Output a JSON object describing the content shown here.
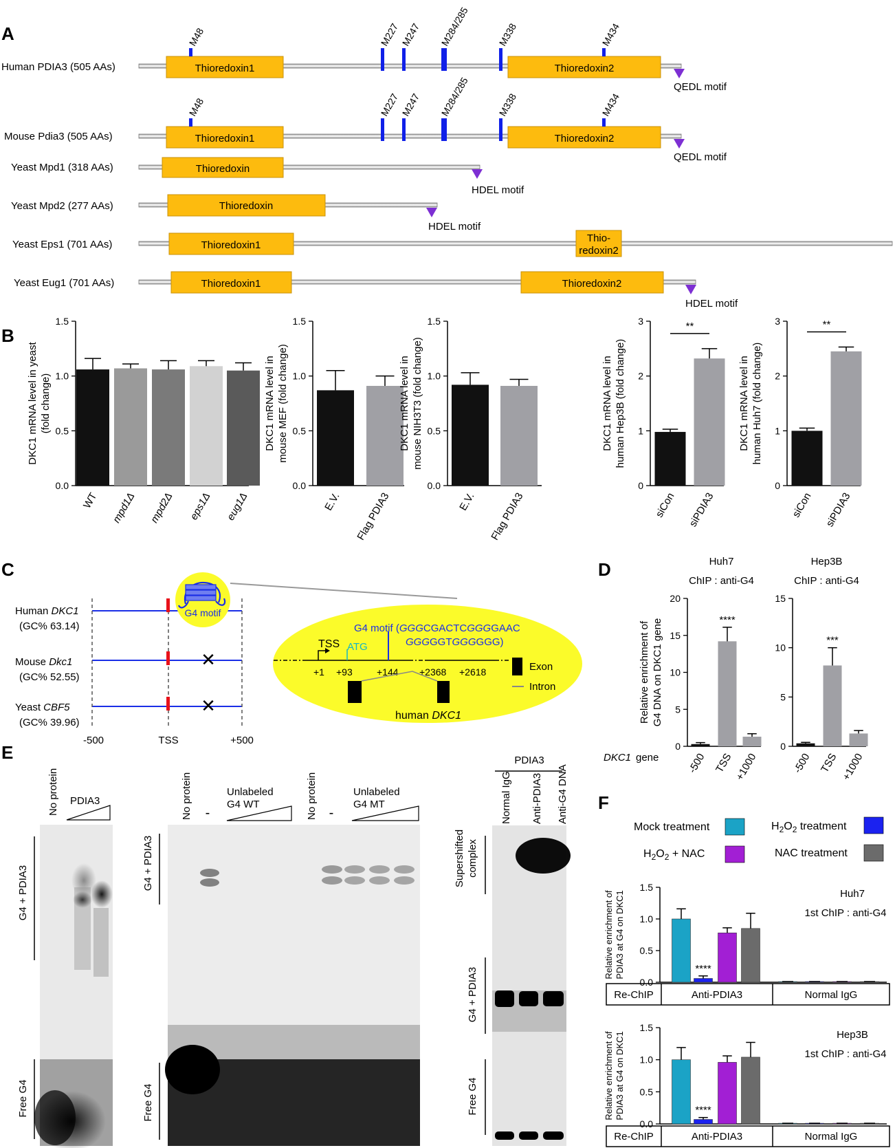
{
  "panel_letters": {
    "a": "A",
    "b": "B",
    "c": "C",
    "d": "D",
    "e": "E",
    "f": "F"
  },
  "panelA": {
    "proteins": [
      {
        "label": "Human PDIA3 (505 AAs)",
        "domains": [
          "Thioredoxin1",
          "Thioredoxin2"
        ],
        "motif": "QEDL motif",
        "sites": [
          "M48",
          "M227",
          "M247",
          "M284/285",
          "M338",
          "M434"
        ]
      },
      {
        "label": "Mouse Pdia3 (505 AAs)",
        "domains": [
          "Thioredoxin1",
          "Thioredoxin2"
        ],
        "motif": "QEDL motif",
        "sites": [
          "M48",
          "M227",
          "M247",
          "M284/285",
          "M338",
          "M434"
        ]
      },
      {
        "label": "Yeast Mpd1 (318 AAs)",
        "domains": [
          "Thioredoxin"
        ],
        "motif": "HDEL motif"
      },
      {
        "label": "Yeast Mpd2 (277 AAs)",
        "domains": [
          "Thioredoxin"
        ],
        "motif": "HDEL motif"
      },
      {
        "label": "Yeast Eps1 (701 AAs)",
        "domains": [
          "Thioredoxin1",
          "Thio-",
          "redoxin2"
        ]
      },
      {
        "label": "Yeast Eug1 (701 AAs)",
        "domains": [
          "Thioredoxin1",
          "Thioredoxin2"
        ],
        "motif": "HDEL motif"
      }
    ]
  },
  "panelC": {
    "rows": [
      {
        "name": "Human ",
        "gene": "DKC1",
        "gc": "(GC% 63.14)"
      },
      {
        "name": "Mouse ",
        "gene": "Dkc1",
        "gc": "(GC% 52.55)"
      },
      {
        "name": "Yeast ",
        "gene": "CBF5",
        "gc": "(GC% 39.96)"
      }
    ],
    "axis": [
      "-500",
      "TSS",
      "+500"
    ],
    "g4_label": "G4 motif",
    "inset": {
      "motif_prefix": "G4 motif (",
      "motif_seq1": "GGG",
      "motif_seq2": "CGACTC",
      "motif_seq3": "GGG",
      "motif_seq4": "GAAC",
      "motif_seq5": "GGG",
      "motif_seq6": "GGT",
      "motif_seq7": "GGG",
      "motif_seq8": "GGG)",
      "tss": "TSS",
      "atg": "ATG",
      "positions": [
        "+1",
        "+93",
        "+144",
        "+2368",
        "+2618"
      ],
      "exon": "Exon",
      "intron": "Intron",
      "gene_prefix": "human ",
      "gene": "DKC1"
    }
  },
  "panelE": {
    "gel1": {
      "lanes": [
        "No protein",
        "PDIA3"
      ],
      "labels": [
        "G4 + PDIA3",
        "Free G4"
      ]
    },
    "gel2": {
      "lanes": [
        "No protein",
        "-",
        "Unlabeled",
        "G4 WT",
        "No protein",
        "-",
        "Unlabeled",
        "G4 MT"
      ],
      "labels": [
        "G4 + PDIA3",
        "Free G4"
      ]
    },
    "gel3": {
      "header": "PDIA3",
      "lanes": [
        "Normal IgG",
        "Anti-PDIA3",
        "Anti-G4 DNA"
      ],
      "labels": [
        "Supershifted",
        "complex",
        "G4 + PDIA3",
        "Free G4"
      ]
    }
  },
  "panelF": {
    "legend": [
      {
        "label": "Mock treatment",
        "color": "#1ba3c6"
      },
      {
        "label": "H2O2 treatment",
        "color": "#1b22f0"
      },
      {
        "label": "H2O2 + NAC",
        "color": "#a21fd4"
      },
      {
        "label": "NAC treatment",
        "color": "#6b6b6b"
      }
    ],
    "rechip": [
      "Re-ChIP",
      "Anti-PDIA3",
      "Normal IgG"
    ]
  },
  "chart_data": [
    {
      "type": "bar",
      "id": "B1",
      "categories": [
        "WT",
        "mpd1Δ",
        "mpd2Δ",
        "eps1Δ",
        "eug1Δ"
      ],
      "values": [
        1.06,
        1.07,
        1.06,
        1.09,
        1.05
      ],
      "errors": [
        0.1,
        0.04,
        0.08,
        0.05,
        0.07
      ],
      "colors": [
        "#111111",
        "#9a9a9a",
        "#7a7a7a",
        "#d2d2d2",
        "#5a5a5a"
      ],
      "ylabel": [
        "DKC1 mRNA level in yeast",
        "(fold change)"
      ],
      "ylim": [
        0,
        1.5
      ],
      "yticks": [
        "0.0",
        "0.5",
        "1.0",
        "1.5"
      ]
    },
    {
      "type": "bar",
      "id": "B2",
      "categories": [
        "E.V.",
        "Flag PDIA3"
      ],
      "values": [
        0.87,
        0.91
      ],
      "errors": [
        0.18,
        0.09
      ],
      "colors": [
        "#111111",
        "#a0a0a5"
      ],
      "ylabel": [
        "DKC1 mRNA level in",
        "mouse MEF (fold change)"
      ],
      "ylim": [
        0,
        1.5
      ],
      "yticks": [
        "0.0",
        "0.5",
        "1.0",
        "1.5"
      ]
    },
    {
      "type": "bar",
      "id": "B3",
      "categories": [
        "E.V.",
        "Flag PDIA3"
      ],
      "values": [
        0.92,
        0.91
      ],
      "errors": [
        0.11,
        0.06
      ],
      "colors": [
        "#111111",
        "#a0a0a5"
      ],
      "ylabel": [
        "DKC1 mRNA level in",
        "mouse NIH3T3 (fold change)"
      ],
      "ylim": [
        0,
        1.5
      ],
      "yticks": [
        "0.0",
        "0.5",
        "1.0",
        "1.5"
      ]
    },
    {
      "type": "bar",
      "id": "B4",
      "categories": [
        "siCon",
        "siPDIA3"
      ],
      "values": [
        0.98,
        2.32
      ],
      "errors": [
        0.05,
        0.18
      ],
      "colors": [
        "#111111",
        "#a0a0a5"
      ],
      "ylabel": [
        "DKC1 mRNA level in",
        "human Hep3B (fold change)"
      ],
      "ylim": [
        0,
        3
      ],
      "yticks": [
        "0",
        "1",
        "2",
        "3"
      ],
      "sig": "**"
    },
    {
      "type": "bar",
      "id": "B5",
      "categories": [
        "siCon",
        "siPDIA3"
      ],
      "values": [
        1.0,
        2.45
      ],
      "errors": [
        0.05,
        0.08
      ],
      "colors": [
        "#111111",
        "#a0a0a5"
      ],
      "ylabel": [
        "DKC1 mRNA level in",
        "human Huh7 (fold change)"
      ],
      "ylim": [
        0,
        3
      ],
      "yticks": [
        "0",
        "1",
        "2",
        "3"
      ],
      "sig": "**"
    },
    {
      "type": "bar",
      "id": "D1",
      "title": "Huh7",
      "subtitle": "ChIP : anti-G4",
      "categories": [
        "-500",
        "TSS",
        "+1000"
      ],
      "values": [
        0.3,
        14.2,
        1.3
      ],
      "errors": [
        0.2,
        1.9,
        0.4
      ],
      "colors": [
        "#111111",
        "#a0a0a5",
        "#a0a0a5"
      ],
      "ylabel": [
        "Relative enrichment of",
        "G4 DNA on DKC1 gene"
      ],
      "ylim": [
        0,
        20
      ],
      "yticks": [
        "0",
        "5",
        "10",
        "15",
        "20"
      ],
      "sig": [
        "",
        "****",
        ""
      ],
      "xlabel": "DKC1 gene"
    },
    {
      "type": "bar",
      "id": "D2",
      "title": "Hep3B",
      "subtitle": "ChIP : anti-G4",
      "categories": [
        "-500",
        "TSS",
        "+1000"
      ],
      "values": [
        0.3,
        8.2,
        1.3
      ],
      "errors": [
        0.1,
        1.8,
        0.3
      ],
      "colors": [
        "#111111",
        "#a0a0a5",
        "#a0a0a5"
      ],
      "ylim": [
        0,
        15
      ],
      "yticks": [
        "0",
        "5",
        "10",
        "15"
      ],
      "sig": [
        "",
        "***",
        ""
      ]
    },
    {
      "type": "bar",
      "id": "F1",
      "title": "Huh7",
      "subtitle": "1st ChIP : anti-G4",
      "categories": [
        "Mock",
        "H2O2",
        "H2O2 + NAC",
        "NAC",
        "IgG Mock",
        "IgG H2O2",
        "IgG H2O2+NAC",
        "IgG NAC"
      ],
      "values": [
        1.0,
        0.06,
        0.78,
        0.85,
        0.01,
        0.01,
        0.01,
        0.01
      ],
      "errors": [
        0.16,
        0.04,
        0.08,
        0.24,
        0,
        0,
        0,
        0
      ],
      "ylabel": [
        "Relative enrichment of",
        "PDIA3 at G4 on DKC1"
      ],
      "ylim": [
        0,
        1.5
      ],
      "yticks": [
        "0.0",
        "0.5",
        "1.0",
        "1.5"
      ],
      "sig": [
        "",
        "****",
        "",
        ""
      ]
    },
    {
      "type": "bar",
      "id": "F2",
      "title": "Hep3B",
      "subtitle": "1st ChIP : anti-G4",
      "categories": [
        "Mock",
        "H2O2",
        "H2O2 + NAC",
        "NAC",
        "IgG Mock",
        "IgG H2O2",
        "IgG H2O2+NAC",
        "IgG NAC"
      ],
      "values": [
        1.0,
        0.07,
        0.96,
        1.04,
        0.01,
        0.01,
        0.01,
        0.01
      ],
      "errors": [
        0.19,
        0.03,
        0.1,
        0.23,
        0,
        0,
        0,
        0
      ],
      "ylabel": [
        "Relative enrichment of",
        "PDIA3 at G4 on DKC1"
      ],
      "ylim": [
        0,
        1.5
      ],
      "yticks": [
        "0.0",
        "0.5",
        "1.0",
        "1.5"
      ],
      "sig": [
        "",
        "****",
        "",
        ""
      ]
    }
  ]
}
